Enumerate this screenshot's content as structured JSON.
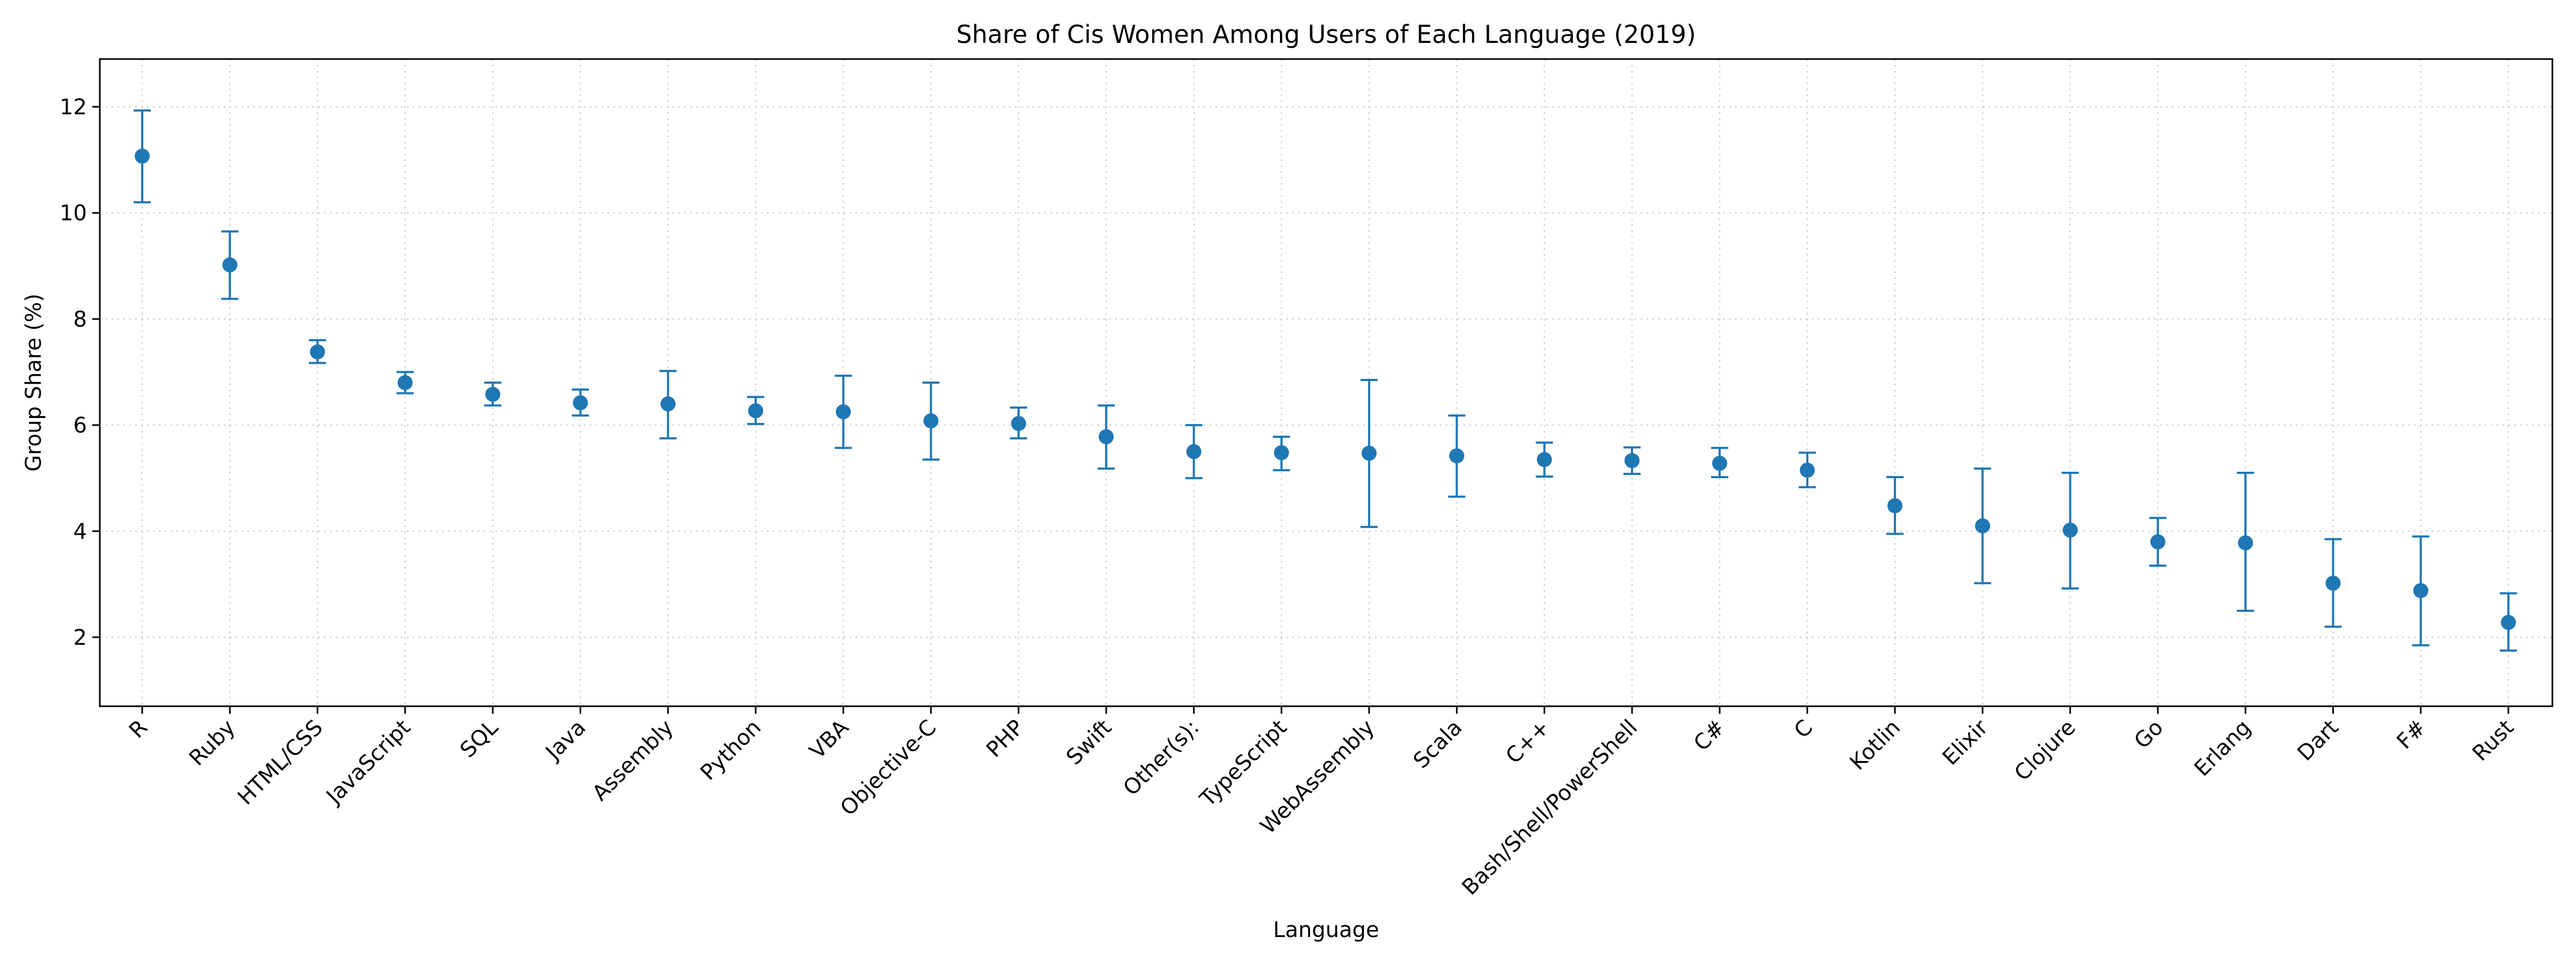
{
  "chart_data": {
    "type": "scatter",
    "subtype": "errorbar",
    "title": "Share of Cis Women Among Users of Each Language (2019)",
    "xlabel": "Language",
    "ylabel": "Group Share (%)",
    "ylim": [
      0.7,
      12.9
    ],
    "yticks": [
      2,
      4,
      6,
      8,
      10,
      12
    ],
    "grid": true,
    "color": "#1f77b4",
    "categories": [
      "R",
      "Ruby",
      "HTML/CSS",
      "JavaScript",
      "SQL",
      "Java",
      "Assembly",
      "Python",
      "VBA",
      "Objective-C",
      "PHP",
      "Swift",
      "Other(s):",
      "TypeScript",
      "WebAssembly",
      "Scala",
      "C++",
      "Bash/Shell/PowerShell",
      "C#",
      "C",
      "Kotlin",
      "Elixir",
      "Clojure",
      "Go",
      "Erlang",
      "Dart",
      "F#",
      "Rust"
    ],
    "values": [
      11.07,
      9.02,
      7.38,
      6.8,
      6.58,
      6.42,
      6.4,
      6.27,
      6.25,
      6.08,
      6.03,
      5.78,
      5.5,
      5.48,
      5.47,
      5.42,
      5.35,
      5.33,
      5.28,
      5.15,
      4.48,
      4.1,
      4.02,
      3.8,
      3.78,
      3.02,
      2.88,
      2.28
    ],
    "error_low": [
      10.2,
      8.38,
      7.17,
      6.6,
      6.37,
      6.18,
      5.75,
      6.02,
      5.57,
      5.35,
      5.75,
      5.18,
      5.0,
      5.15,
      4.08,
      4.65,
      5.03,
      5.08,
      5.02,
      4.83,
      3.95,
      3.02,
      2.92,
      3.35,
      2.5,
      2.2,
      1.85,
      1.75
    ],
    "error_high": [
      11.93,
      9.65,
      7.6,
      7.0,
      6.8,
      6.67,
      7.02,
      6.53,
      6.93,
      6.8,
      6.33,
      6.37,
      6.0,
      5.78,
      6.85,
      6.18,
      5.67,
      5.58,
      5.57,
      5.48,
      5.02,
      5.18,
      5.1,
      4.25,
      5.1,
      3.85,
      3.9,
      2.83
    ]
  }
}
